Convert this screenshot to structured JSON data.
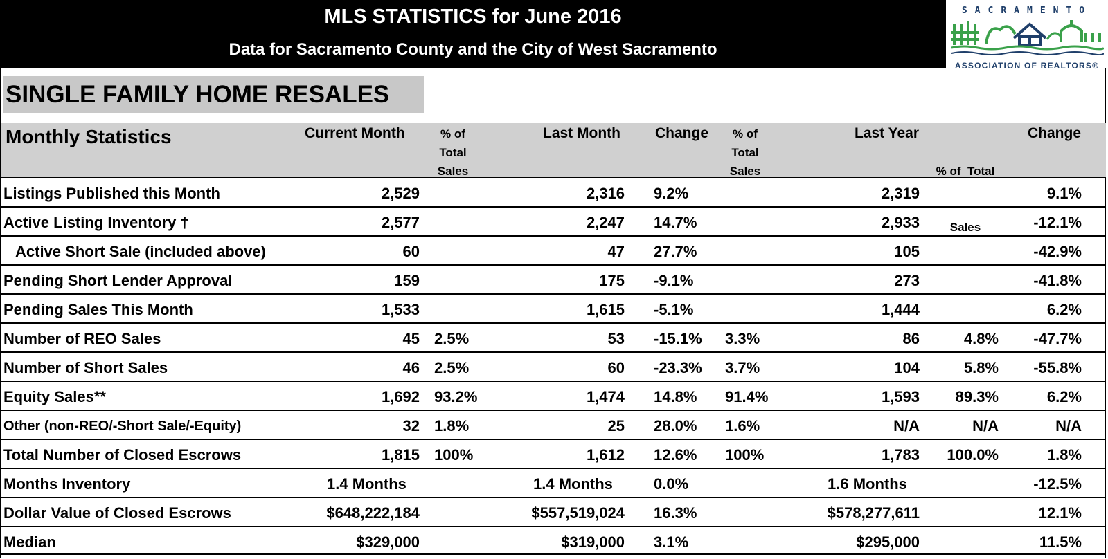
{
  "header": {
    "title": "MLS STATISTICS for June 2016",
    "subtitle": "Data for Sacramento County and the City of West Sacramento"
  },
  "logo": {
    "top_text": "SACRAMENTO",
    "bottom_text": "ASSOCIATION OF REALTORS®",
    "colors": {
      "green": "#3aa14a",
      "navy": "#1f3f6a"
    }
  },
  "section_title": "SINGLE FAMILY HOME RESALES",
  "columns": {
    "label": "Monthly Statistics",
    "current": "Current Month",
    "cur_pct": [
      "% of",
      "Total",
      "Sales"
    ],
    "last": "Last Month",
    "change": "Change",
    "lm_pct": [
      "% of",
      "Total",
      "Sales"
    ],
    "last_year": "Last Year",
    "ly_pct": [
      "% of  Total",
      "Sales"
    ],
    "ly_change": "Change"
  },
  "rows": [
    {
      "label": "Listings Published this Month",
      "current": "2,529",
      "cur_pct": "",
      "last": "2,316",
      "change": "9.2%",
      "lm_pct": "",
      "ly": "2,319",
      "ly_pct": "",
      "ly_change": "9.1%"
    },
    {
      "label": "Active Listing Inventory †",
      "current": "2,577",
      "cur_pct": "",
      "last": "2,247",
      "change": "14.7%",
      "lm_pct": "",
      "ly": "2,933",
      "ly_pct": "",
      "ly_change": "-12.1%"
    },
    {
      "label": "Active Short Sale (included above)",
      "current": "60",
      "cur_pct": "",
      "last": "47",
      "change": "27.7%",
      "lm_pct": "",
      "ly": "105",
      "ly_pct": "",
      "ly_change": "-42.9%"
    },
    {
      "label": "Pending Short Lender Approval",
      "current": "159",
      "cur_pct": "",
      "last": "175",
      "change": "-9.1%",
      "lm_pct": "",
      "ly": "273",
      "ly_pct": "",
      "ly_change": "-41.8%"
    },
    {
      "label": "Pending Sales This Month",
      "current": "1,533",
      "cur_pct": "",
      "last": "1,615",
      "change": "-5.1%",
      "lm_pct": "",
      "ly": "1,444",
      "ly_pct": "",
      "ly_change": "6.2%"
    },
    {
      "label": "Number of REO Sales",
      "current": "45",
      "cur_pct": "2.5%",
      "last": "53",
      "change": "-15.1%",
      "lm_pct": "3.3%",
      "ly": "86",
      "ly_pct": "4.8%",
      "ly_change": "-47.7%"
    },
    {
      "label": "Number of Short Sales",
      "current": "46",
      "cur_pct": "2.5%",
      "last": "60",
      "change": "-23.3%",
      "lm_pct": "3.7%",
      "ly": "104",
      "ly_pct": "5.8%",
      "ly_change": "-55.8%"
    },
    {
      "label": "Equity Sales**",
      "current": "1,692",
      "cur_pct": "93.2%",
      "last": "1,474",
      "change": "14.8%",
      "lm_pct": "91.4%",
      "ly": "1,593",
      "ly_pct": "89.3%",
      "ly_change": "6.2%"
    },
    {
      "label": "Other (non-REO/-Short Sale/-Equity)",
      "current": "32",
      "cur_pct": "1.8%",
      "last": "25",
      "change": "28.0%",
      "lm_pct": "1.6%",
      "ly": "N/A",
      "ly_pct": "N/A",
      "ly_change": "N/A"
    },
    {
      "label": "Total Number of Closed Escrows",
      "current": "1,815",
      "cur_pct": "100%",
      "last": "1,612",
      "change": "12.6%",
      "lm_pct": "100%",
      "ly": "1,783",
      "ly_pct": "100.0%",
      "ly_change": "1.8%"
    },
    {
      "label": "Months Inventory",
      "current": "1.4 Months",
      "cur_pct": "",
      "last": "1.4 Months",
      "change": "0.0%",
      "lm_pct": "",
      "ly": "1.6 Months",
      "ly_pct": "",
      "ly_change": "-12.5%"
    },
    {
      "label": "Dollar Value of Closed Escrows",
      "current": "$648,222,184",
      "cur_pct": "",
      "last": "$557,519,024",
      "change": "16.3%",
      "lm_pct": "",
      "ly": "$578,277,611",
      "ly_pct": "",
      "ly_change": "12.1%"
    },
    {
      "label": "Median",
      "current": "$329,000",
      "cur_pct": "",
      "last": "$319,000",
      "change": "3.1%",
      "lm_pct": "",
      "ly": "$295,000",
      "ly_pct": "",
      "ly_change": "11.5%"
    }
  ]
}
